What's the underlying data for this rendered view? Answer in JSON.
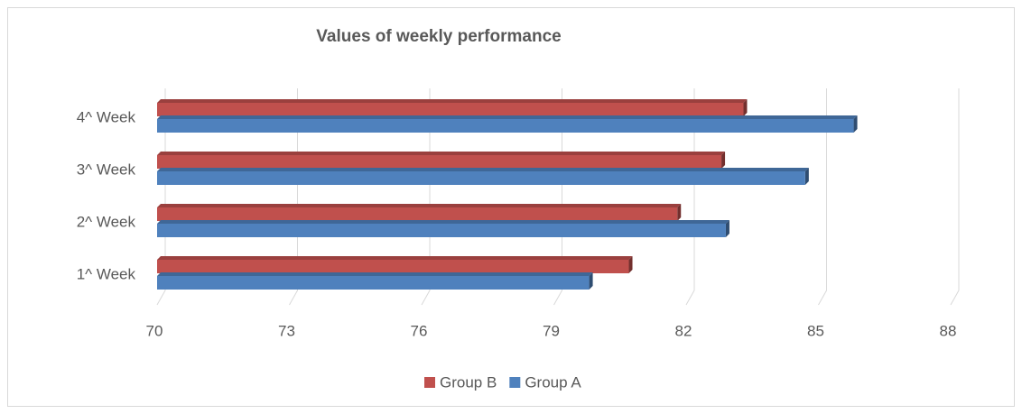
{
  "chart_data": {
    "type": "bar",
    "orientation": "horizontal",
    "title": "Values of weekly performance",
    "categories": [
      "1^ Week",
      "2^ Week",
      "3^ Week",
      "4^ Week"
    ],
    "series": [
      {
        "name": "Group B",
        "color": "#c0504d",
        "values": [
          80.7,
          81.8,
          82.8,
          83.3
        ]
      },
      {
        "name": "Group A",
        "color": "#4f81bd",
        "values": [
          79.8,
          82.9,
          84.7,
          85.8
        ]
      }
    ],
    "xlim": [
      70,
      88
    ],
    "xticks": [
      70,
      73,
      76,
      79,
      82,
      85,
      88
    ],
    "grid": true,
    "legend": "bottom"
  }
}
